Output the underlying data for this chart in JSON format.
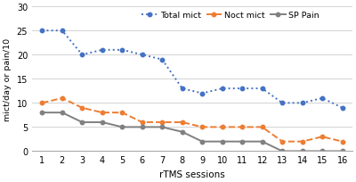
{
  "sessions": [
    1,
    2,
    3,
    4,
    5,
    6,
    7,
    8,
    9,
    10,
    11,
    12,
    13,
    14,
    15,
    16
  ],
  "total_mict": [
    25,
    25,
    20,
    21,
    21,
    20,
    19,
    13,
    12,
    13,
    13,
    13,
    10,
    10,
    11,
    9
  ],
  "noct_mict": [
    10,
    11,
    9,
    8,
    8,
    6,
    6,
    6,
    5,
    5,
    5,
    5,
    2,
    2,
    3,
    2
  ],
  "sp_pain": [
    8,
    8,
    6,
    6,
    5,
    5,
    5,
    4,
    2,
    2,
    2,
    2,
    0,
    0,
    0,
    0
  ],
  "total_color": "#4472C4",
  "noct_color": "#ED7D31",
  "sp_color": "#808080",
  "ylabel": "mict/day or pain/10",
  "xlabel": "rTMS sessions",
  "ylim": [
    0,
    30
  ],
  "yticks": [
    0,
    5,
    10,
    15,
    20,
    25,
    30
  ],
  "bg_color": "#FFFFFF",
  "legend_labels": [
    "Total mict",
    "Noct mict",
    "SP Pain"
  ]
}
